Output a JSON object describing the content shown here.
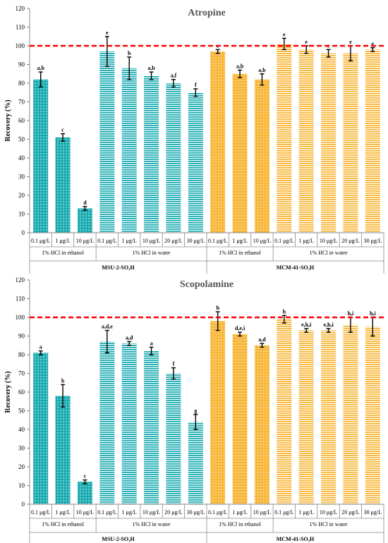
{
  "chart_data": [
    {
      "type": "bar",
      "title": "Atropine",
      "ylabel": "Recovery (%)",
      "ylim": [
        0,
        120
      ],
      "yticks": [
        0,
        10,
        20,
        30,
        40,
        50,
        60,
        70,
        80,
        90,
        100,
        110,
        120
      ],
      "reference_line": 100,
      "categories": [
        "0.1 μg/L",
        "1 μg/L",
        "10 μg/L",
        "0.1 μg/L",
        "1 μg/L",
        "10 μg/L",
        "20 μg/L",
        "30 μg/L",
        "0.1 μg/L",
        "1 μg/L",
        "10 μg/L",
        "0.1 μg/L",
        "1 μg/L",
        "10 μg/L",
        "20 μg/L",
        "30 μg/L"
      ],
      "values": [
        82,
        51,
        13,
        97,
        88,
        84,
        80,
        75,
        97,
        85,
        82,
        101,
        98,
        96,
        96,
        98
      ],
      "errors": [
        4,
        2,
        1,
        8,
        6,
        2,
        2,
        2,
        1,
        2,
        3,
        3,
        2,
        2,
        4,
        1
      ],
      "labels": [
        "a,b",
        "c",
        "d",
        "e",
        "b",
        "a,b",
        "a,f",
        "f",
        "e",
        "a,b",
        "a,b",
        "e",
        "e",
        "e",
        "e",
        "e"
      ],
      "groups": [
        "1% HCl in ethanol",
        "1% HCl in water",
        "1% HCl in ethanol",
        "1% HCl in water"
      ],
      "materials": [
        "MSU-2-SO₃H",
        "MCM-41-SO₃H"
      ]
    },
    {
      "type": "bar",
      "title": "Scopolamine",
      "ylabel": "Recovery (%)",
      "ylim": [
        0,
        120
      ],
      "yticks": [
        0,
        10,
        20,
        30,
        40,
        50,
        60,
        70,
        80,
        90,
        100,
        110,
        120
      ],
      "reference_line": 100,
      "categories": [
        "0.1 μg/L",
        "1 μg/L",
        "10 μg/L",
        "0.1 μg/L",
        "1 μg/L",
        "10 μg/L",
        "20 μg/L",
        "30 μg/L",
        "0.1 μg/L",
        "1 μg/L",
        "10 μg/L",
        "0.1 μg/L",
        "1 μg/L",
        "10 μg/L",
        "20 μg/L",
        "30 μg/L"
      ],
      "values": [
        81,
        58,
        12,
        87,
        86,
        82,
        70,
        44,
        98,
        91,
        85,
        99,
        93,
        93,
        96,
        95
      ],
      "errors": [
        1,
        6,
        1,
        6,
        1,
        2,
        3,
        4,
        5,
        1,
        1,
        2,
        1,
        1,
        4,
        5
      ],
      "labels": [
        "a",
        "b",
        "c",
        "a,d,e",
        "a,d",
        "a",
        "f",
        "g",
        "h",
        "d,e,i",
        "a,d",
        "h",
        "e,h,i",
        "e,h,i",
        "h,i",
        "h,i"
      ],
      "groups": [
        "1% HCl in ethanol",
        "1% HCl in water",
        "1% HCl in ethanol",
        "1% HCl in water"
      ],
      "materials": [
        "MSU-2-SO₃H",
        "MCM-41-SO₃H"
      ]
    }
  ],
  "colors": {
    "msu_bar": "#1aabb0",
    "mcm_bar": "#f7b636",
    "reference_line": "#ff0000",
    "title": "#555555",
    "axis": "#888888"
  }
}
